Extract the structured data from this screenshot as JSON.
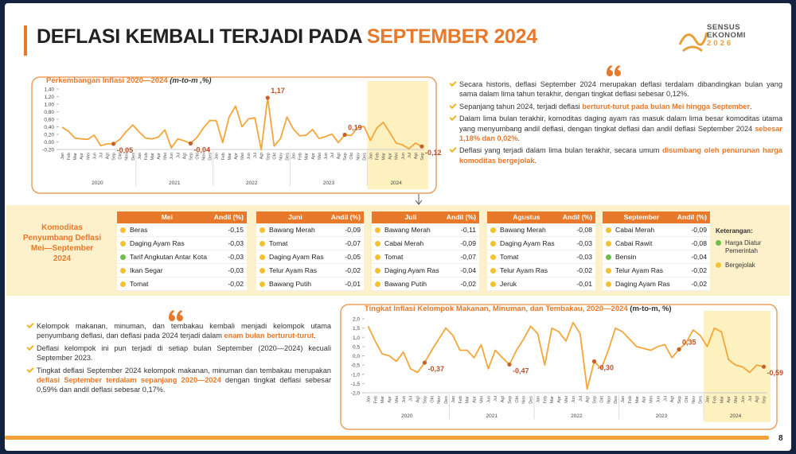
{
  "title": {
    "main": "DEFLASI KEMBALI TERJADI PADA ",
    "highlight": "SEPTEMBER 2024"
  },
  "logo": {
    "line1": "SENSUS",
    "line2": "EKONOMI",
    "line3": "2026"
  },
  "page_number": "8",
  "bullets_right": [
    [
      {
        "text": "Secara historis, deflasi September 2024 merupakan deflasi terdalam dibandingkan bulan yang sama dalam lima tahun terakhir, dengan tingkat deflasi sebesar 0,12%."
      }
    ],
    [
      {
        "text": "Sepanjang tahun 2024, terjadi deflasi "
      },
      {
        "text": "berturut-turut pada bulan Mei hingga September",
        "em": true
      },
      {
        "text": "."
      }
    ],
    [
      {
        "text": "Dalam lima bulan terakhir, komoditas daging ayam ras masuk dalam lima besar komoditas utama yang menyumbang andil deflasi, dengan tingkat deflasi dan andil deflasi September 2024 "
      },
      {
        "text": "sebesar 1,18% dan 0,02%",
        "em": true
      },
      {
        "text": "."
      }
    ],
    [
      {
        "text": "Deflasi yang terjadi dalam lima bulan terakhir, secara umum "
      },
      {
        "text": "disumbang oleh penurunan harga komoditas bergejolak",
        "em": true
      },
      {
        "text": "."
      }
    ]
  ],
  "bullets_left": [
    [
      {
        "text": "Kelompok makanan, minuman, dan tembakau kembali menjadi kelompok utama penyumbang deflasi, dan deflasi pada 2024 terjadi dalam "
      },
      {
        "text": "enam bulan berturut-turut",
        "em": true
      },
      {
        "text": "."
      }
    ],
    [
      {
        "text": "Deflasi kelompok ini pun terjadi di setiap bulan September (2020—2024) kecuali September 2023."
      }
    ],
    [
      {
        "text": "Tingkat deflasi September 2024 kelompok makanan, minuman dan tembakau merupakan "
      },
      {
        "text": "deflasi September terdalam sepanjang 2020—2024",
        "em": true
      },
      {
        "text": " dengan tingkat deflasi sebesar 0,59% dan andil deflasi sebesar 0,17%."
      }
    ]
  ],
  "commodity_heading": "Komoditas Penyumbang Deflasi Mei—September 2024",
  "andil_header": "Andil (%)",
  "tables": [
    {
      "month": "Mei",
      "rows": [
        {
          "item": "Beras",
          "andil": "-0,15",
          "color": "#f2c230"
        },
        {
          "item": "Daging Ayam Ras",
          "andil": "-0,03",
          "color": "#f2c230"
        },
        {
          "item": "Tarif Angkutan Antar Kota",
          "andil": "-0,03",
          "color": "#6cbf4a"
        },
        {
          "item": "Ikan Segar",
          "andil": "-0,03",
          "color": "#f2c230"
        },
        {
          "item": "Tomat",
          "andil": "-0,02",
          "color": "#f2c230"
        }
      ]
    },
    {
      "month": "Juni",
      "rows": [
        {
          "item": "Bawang Merah",
          "andil": "-0,09",
          "color": "#f2c230"
        },
        {
          "item": "Tomat",
          "andil": "-0,07",
          "color": "#f2c230"
        },
        {
          "item": "Daging Ayam Ras",
          "andil": "-0,05",
          "color": "#f2c230"
        },
        {
          "item": "Telur Ayam Ras",
          "andil": "-0,02",
          "color": "#f2c230"
        },
        {
          "item": "Bawang Putih",
          "andil": "-0,01",
          "color": "#f2c230"
        }
      ]
    },
    {
      "month": "Juli",
      "rows": [
        {
          "item": "Bawang Merah",
          "andil": "-0,11",
          "color": "#f2c230"
        },
        {
          "item": "Cabai Merah",
          "andil": "-0,09",
          "color": "#f2c230"
        },
        {
          "item": "Tomat",
          "andil": "-0,07",
          "color": "#f2c230"
        },
        {
          "item": "Daging Ayam Ras",
          "andil": "-0,04",
          "color": "#f2c230"
        },
        {
          "item": "Bawang Putih",
          "andil": "-0,02",
          "color": "#f2c230"
        }
      ]
    },
    {
      "month": "Agustus",
      "rows": [
        {
          "item": "Bawang Merah",
          "andil": "-0,08",
          "color": "#f2c230"
        },
        {
          "item": "Daging Ayam Ras",
          "andil": "-0,03",
          "color": "#f2c230"
        },
        {
          "item": "Tomat",
          "andil": "-0,03",
          "color": "#f2c230"
        },
        {
          "item": "Telur Ayam Ras",
          "andil": "-0,02",
          "color": "#f2c230"
        },
        {
          "item": "Jeruk",
          "andil": "-0,01",
          "color": "#f2c230"
        }
      ]
    },
    {
      "month": "September",
      "rows": [
        {
          "item": "Cabai Merah",
          "andil": "-0,09",
          "color": "#f2c230"
        },
        {
          "item": "Cabai Rawit",
          "andil": "-0,08",
          "color": "#f2c230"
        },
        {
          "item": "Bensin",
          "andil": "-0,04",
          "color": "#6cbf4a"
        },
        {
          "item": "Telur Ayam Ras",
          "andil": "-0,02",
          "color": "#f2c230"
        },
        {
          "item": "Daging Ayam Ras",
          "andil": "-0,02",
          "color": "#f2c230"
        }
      ]
    }
  ],
  "legend": {
    "title": "Keterangan:",
    "items": [
      {
        "label": "Harga Diatur Pemerintah",
        "color": "#6cbf4a"
      },
      {
        "label": "Bergejolak",
        "color": "#f2c230"
      }
    ]
  },
  "chart_data": [
    {
      "type": "line",
      "title": "Perkembangan Inflasi 2020—2024",
      "unit": " (m-to-m ,%)",
      "categories": [
        "Jan",
        "Feb",
        "Mar",
        "Apr",
        "Mei",
        "Jun",
        "Jul",
        "Agt",
        "Sep",
        "Okt",
        "Nov",
        "Des",
        "Jan",
        "Feb",
        "Mar",
        "Apr",
        "Mei",
        "Jun",
        "Jul",
        "Agt",
        "Sep",
        "Okt",
        "Nov",
        "Des",
        "Jan",
        "Feb",
        "Mar",
        "Apr",
        "Mei",
        "Jun",
        "Jul",
        "Agt",
        "Sep",
        "Okt",
        "Nov",
        "Des",
        "Jan",
        "Feb",
        "Mar",
        "Apr",
        "Mei",
        "Jun",
        "Jul",
        "Agt",
        "Sep",
        "Okt",
        "Nov",
        "Des",
        "Jan",
        "Feb",
        "Mar",
        "Apr",
        "Mei",
        "Jun",
        "Jul",
        "Agt",
        "Sep"
      ],
      "groups": [
        "2020",
        "2021",
        "2022",
        "2023",
        "2024"
      ],
      "series": [
        {
          "name": "Inflasi",
          "color": "#f4a63a",
          "values": [
            0.39,
            0.28,
            0.1,
            0.08,
            0.07,
            0.18,
            -0.1,
            -0.05,
            -0.05,
            0.07,
            0.28,
            0.45,
            0.26,
            0.1,
            0.08,
            0.13,
            0.32,
            -0.16,
            0.08,
            0.03,
            -0.04,
            0.12,
            0.37,
            0.57,
            0.56,
            -0.02,
            0.66,
            0.95,
            0.4,
            0.61,
            0.64,
            -0.21,
            1.17,
            -0.11,
            0.09,
            0.66,
            0.34,
            0.16,
            0.18,
            0.33,
            0.09,
            0.14,
            0.21,
            -0.02,
            0.19,
            0.17,
            0.38,
            0.41,
            0.04,
            0.37,
            0.52,
            0.25,
            -0.03,
            -0.08,
            -0.18,
            -0.03,
            -0.12
          ],
          "value_labels": [
            null,
            null,
            null,
            null,
            null,
            null,
            null,
            null,
            "-0,05",
            null,
            null,
            null,
            null,
            null,
            null,
            null,
            null,
            null,
            null,
            null,
            "-0,04",
            null,
            null,
            null,
            null,
            null,
            null,
            null,
            null,
            null,
            null,
            null,
            "1,17",
            null,
            null,
            null,
            null,
            null,
            null,
            null,
            null,
            null,
            null,
            null,
            "0,19",
            null,
            null,
            null,
            null,
            null,
            null,
            null,
            null,
            null,
            null,
            null,
            "-0,12"
          ]
        }
      ],
      "ylim": [
        -0.2,
        1.4
      ],
      "yticks": [
        {
          "value": -0.2,
          "label": "-0,20"
        },
        {
          "value": 0,
          "label": "0,00"
        },
        {
          "value": 0.2,
          "label": "0,20"
        },
        {
          "value": 0.4,
          "label": "0,40"
        },
        {
          "value": 0.6,
          "label": "0,60"
        },
        {
          "value": 0.8,
          "label": "0,80"
        },
        {
          "value": 1.0,
          "label": "1,00"
        },
        {
          "value": 1.2,
          "label": "1,20"
        },
        {
          "value": 1.4,
          "label": "1,40"
        }
      ],
      "grid": false
    },
    {
      "type": "line",
      "title": "Tingkat Inflasi Kelompok Makanan, Minuman, dan Tembakau, 2020—2024",
      "unit": " (m-to-m, %)",
      "categories": [
        "Jan",
        "Feb",
        "Mar",
        "Apr",
        "Mei",
        "Jun",
        "Jul",
        "Agt",
        "Sep",
        "Okt",
        "Nov",
        "Des",
        "Jan",
        "Feb",
        "Mar",
        "Apr",
        "Mei",
        "Jun",
        "Jul",
        "Agt",
        "Sep",
        "Okt",
        "Nov",
        "Des",
        "Jan",
        "Feb",
        "Mar",
        "Apr",
        "Mei",
        "Jun",
        "Jul",
        "Agt",
        "Sep",
        "Okt",
        "Nov",
        "Des",
        "Jan",
        "Feb",
        "Mar",
        "Apr",
        "Mei",
        "Jun",
        "Jul",
        "Agt",
        "Sep",
        "Okt",
        "Nov",
        "Des",
        "Jan",
        "Feb",
        "Mar",
        "Apr",
        "Mei",
        "Jun",
        "Jul",
        "Agt",
        "Sep"
      ],
      "groups": [
        "2020",
        "2021",
        "2022",
        "2023",
        "2024"
      ],
      "series": [
        {
          "name": "Makanan, Minuman, dan Tembakau",
          "color": "#f4a63a",
          "values": [
            1.6,
            0.8,
            0.1,
            0.0,
            -0.3,
            0.2,
            -0.7,
            -0.9,
            -0.37,
            0.3,
            0.9,
            1.5,
            1.1,
            0.3,
            0.3,
            -0.1,
            0.6,
            -0.7,
            0.3,
            -0.1,
            -0.47,
            0.3,
            0.9,
            1.6,
            1.2,
            -0.5,
            1.5,
            1.3,
            0.8,
            1.8,
            1.2,
            -1.8,
            -0.3,
            -0.7,
            0.3,
            1.5,
            1.3,
            0.9,
            0.5,
            0.4,
            0.3,
            0.5,
            0.6,
            -0.1,
            0.35,
            0.7,
            1.4,
            1.1,
            0.5,
            1.5,
            1.3,
            -0.2,
            -0.5,
            -0.6,
            -0.9,
            -0.5,
            -0.59
          ],
          "value_labels": [
            null,
            null,
            null,
            null,
            null,
            null,
            null,
            null,
            "-0,37",
            null,
            null,
            null,
            null,
            null,
            null,
            null,
            null,
            null,
            null,
            null,
            "-0,47",
            null,
            null,
            null,
            null,
            null,
            null,
            null,
            null,
            null,
            null,
            null,
            "-0,30",
            null,
            null,
            null,
            null,
            null,
            null,
            null,
            null,
            null,
            null,
            null,
            "0,35",
            null,
            null,
            null,
            null,
            null,
            null,
            null,
            null,
            null,
            null,
            null,
            "-0,59"
          ]
        }
      ],
      "ylim": [
        -2.0,
        2.0
      ],
      "yticks": [
        {
          "value": -2.0,
          "label": "-2,0"
        },
        {
          "value": -1.5,
          "label": "-1,5"
        },
        {
          "value": -1.0,
          "label": "-1,0"
        },
        {
          "value": -0.5,
          "label": "-0,5"
        },
        {
          "value": 0,
          "label": "0,0"
        },
        {
          "value": 0.5,
          "label": "0,5"
        },
        {
          "value": 1.0,
          "label": "1,0"
        },
        {
          "value": 1.5,
          "label": "1,5"
        },
        {
          "value": 2.0,
          "label": "2,0"
        }
      ],
      "grid": false
    }
  ]
}
